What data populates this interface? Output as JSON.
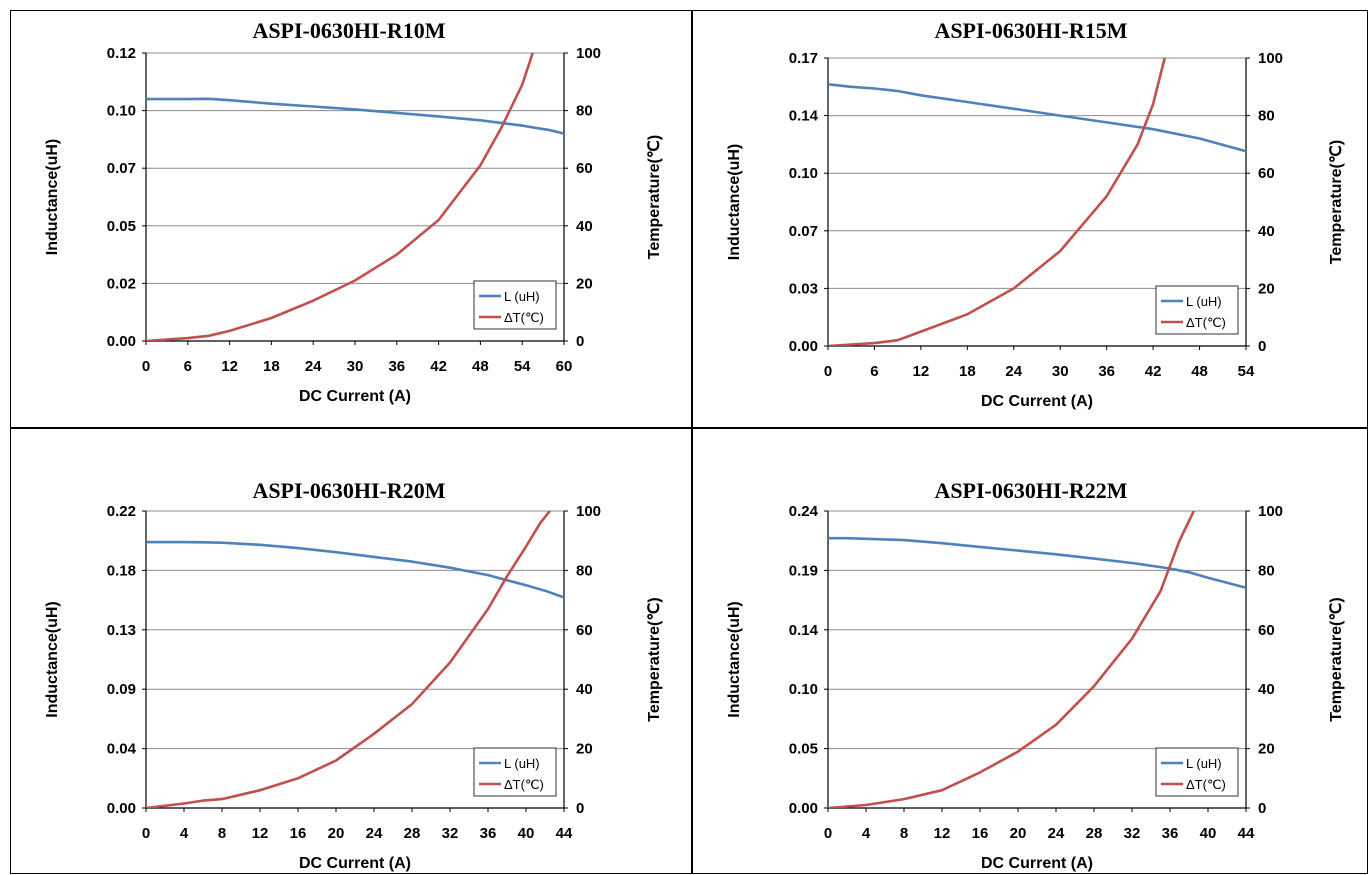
{
  "colors": {
    "inductance": "#4f81bd",
    "temperature": "#c0504d",
    "grid": "#8c8c8c"
  },
  "chart_data": [
    {
      "type": "line",
      "title": "ASPI-0630HI-R10M",
      "xlabel": "DC Current (A)",
      "ylabel": "Inductance(uH)",
      "y2label": "Temperature(℃)",
      "xlim": [
        0,
        60
      ],
      "ylim": [
        0,
        0.125
      ],
      "y2lim": [
        0,
        100
      ],
      "xticks": [
        "0",
        "6",
        "12",
        "18",
        "24",
        "30",
        "36",
        "42",
        "48",
        "54",
        "60"
      ],
      "yticks": [
        "0.00",
        "0.02",
        "0.05",
        "0.07",
        "0.10",
        "0.12"
      ],
      "y2ticks": [
        "0",
        "20",
        "40",
        "60",
        "80",
        "100"
      ],
      "legend": {
        "position": "bottom-right",
        "entries": [
          "L (uH)",
          "ΔT(℃)"
        ]
      },
      "grid": true,
      "series": [
        {
          "name": "L (uH)",
          "axis": "left",
          "x": [
            0,
            6,
            9,
            12,
            18,
            24,
            30,
            36,
            42,
            48,
            54,
            58,
            60
          ],
          "y": [
            0.105,
            0.105,
            0.1051,
            0.1045,
            0.103,
            0.1018,
            0.1005,
            0.099,
            0.0975,
            0.0958,
            0.0935,
            0.0915,
            0.09
          ]
        },
        {
          "name": "ΔT(℃)",
          "axis": "right",
          "x": [
            0,
            6,
            9,
            12,
            18,
            24,
            30,
            36,
            42,
            48,
            51,
            54,
            55.5
          ],
          "y": [
            0,
            1,
            1.8,
            3.5,
            8,
            14,
            21,
            30,
            42,
            61,
            74,
            89,
            100
          ]
        }
      ]
    },
    {
      "type": "line",
      "title": "ASPI-0630HI-R15M",
      "xlabel": "DC Current (A)",
      "ylabel": "Inductance(uH)",
      "y2label": "Temperature(℃)",
      "xlim": [
        0,
        54
      ],
      "ylim": [
        0,
        0.17
      ],
      "y2lim": [
        0,
        100
      ],
      "xticks": [
        "0",
        "6",
        "12",
        "18",
        "24",
        "30",
        "36",
        "42",
        "48",
        "54"
      ],
      "yticks": [
        "0.00",
        "0.03",
        "0.07",
        "0.10",
        "0.14",
        "0.17"
      ],
      "y2ticks": [
        "0",
        "20",
        "40",
        "60",
        "80",
        "100"
      ],
      "legend": {
        "position": "bottom-right",
        "entries": [
          "L (uH)",
          "ΔT(℃)"
        ]
      },
      "grid": true,
      "series": [
        {
          "name": "L (uH)",
          "axis": "left",
          "x": [
            0,
            3,
            6,
            9,
            12,
            18,
            24,
            30,
            36,
            42,
            48,
            54
          ],
          "y": [
            0.1545,
            0.153,
            0.152,
            0.1505,
            0.148,
            0.144,
            0.14,
            0.136,
            0.132,
            0.128,
            0.1225,
            0.115
          ]
        },
        {
          "name": "ΔT(℃)",
          "axis": "right",
          "x": [
            0,
            6,
            9,
            12,
            18,
            24,
            30,
            36,
            40,
            42,
            43.5
          ],
          "y": [
            0,
            1,
            2,
            5,
            11,
            20,
            33,
            52,
            70,
            84,
            100
          ]
        }
      ]
    },
    {
      "type": "line",
      "title": "ASPI-0630HI-R20M",
      "xlabel": "DC Current (A)",
      "ylabel": "Inductance(uH)",
      "y2label": "Temperature(℃)",
      "xlim": [
        0,
        44
      ],
      "ylim": [
        0,
        0.22
      ],
      "y2lim": [
        0,
        100
      ],
      "xticks": [
        "0",
        "4",
        "8",
        "12",
        "16",
        "20",
        "24",
        "28",
        "32",
        "36",
        "40",
        "44"
      ],
      "yticks": [
        "0.00",
        "0.04",
        "0.09",
        "0.13",
        "0.18",
        "0.22"
      ],
      "y2ticks": [
        "0",
        "20",
        "40",
        "60",
        "80",
        "100"
      ],
      "legend": {
        "position": "bottom-right",
        "entries": [
          "L (uH)",
          "ΔT(℃)"
        ]
      },
      "grid": true,
      "series": [
        {
          "name": "L (uH)",
          "axis": "left",
          "x": [
            0,
            4,
            6,
            8,
            12,
            16,
            20,
            24,
            28,
            32,
            36,
            40,
            42,
            44
          ],
          "y": [
            0.197,
            0.197,
            0.1968,
            0.1965,
            0.195,
            0.1925,
            0.1895,
            0.186,
            0.1825,
            0.178,
            0.1725,
            0.165,
            0.161,
            0.156
          ]
        },
        {
          "name": "ΔT(℃)",
          "axis": "right",
          "x": [
            0,
            4,
            6,
            8,
            12,
            16,
            20,
            24,
            28,
            32,
            36,
            38,
            40,
            41.5,
            42.5
          ],
          "y": [
            0,
            1.5,
            2.5,
            3,
            6,
            10,
            16,
            25,
            35,
            49,
            67,
            78,
            88,
            96,
            100
          ]
        }
      ]
    },
    {
      "type": "line",
      "title": "ASPI-0630HI-R22M",
      "xlabel": "DC Current (A)",
      "ylabel": "Inductance(uH)",
      "y2label": "Temperature(℃)",
      "xlim": [
        0,
        44
      ],
      "ylim": [
        0,
        0.24
      ],
      "y2lim": [
        0,
        100
      ],
      "xticks": [
        "0",
        "4",
        "8",
        "12",
        "16",
        "20",
        "24",
        "28",
        "32",
        "36",
        "40",
        "44"
      ],
      "yticks": [
        "0.00",
        "0.05",
        "0.10",
        "0.14",
        "0.19",
        "0.24"
      ],
      "y2ticks": [
        "0",
        "20",
        "40",
        "60",
        "80",
        "100"
      ],
      "legend": {
        "position": "bottom-right",
        "entries": [
          "L (uH)",
          "ΔT(℃)"
        ]
      },
      "grid": true,
      "series": [
        {
          "name": "L (uH)",
          "axis": "left",
          "x": [
            0,
            2,
            4,
            8,
            12,
            16,
            20,
            24,
            28,
            32,
            36,
            38,
            40,
            42,
            44
          ],
          "y": [
            0.218,
            0.218,
            0.2175,
            0.2165,
            0.214,
            0.211,
            0.208,
            0.205,
            0.2015,
            0.198,
            0.1935,
            0.1905,
            0.186,
            0.182,
            0.178
          ]
        },
        {
          "name": "ΔT(℃)",
          "axis": "right",
          "x": [
            0,
            4,
            8,
            12,
            16,
            20,
            24,
            28,
            32,
            35,
            37,
            38.5
          ],
          "y": [
            0,
            1,
            3,
            6,
            12,
            19,
            28,
            41,
            57,
            73,
            90,
            100
          ]
        }
      ]
    }
  ]
}
